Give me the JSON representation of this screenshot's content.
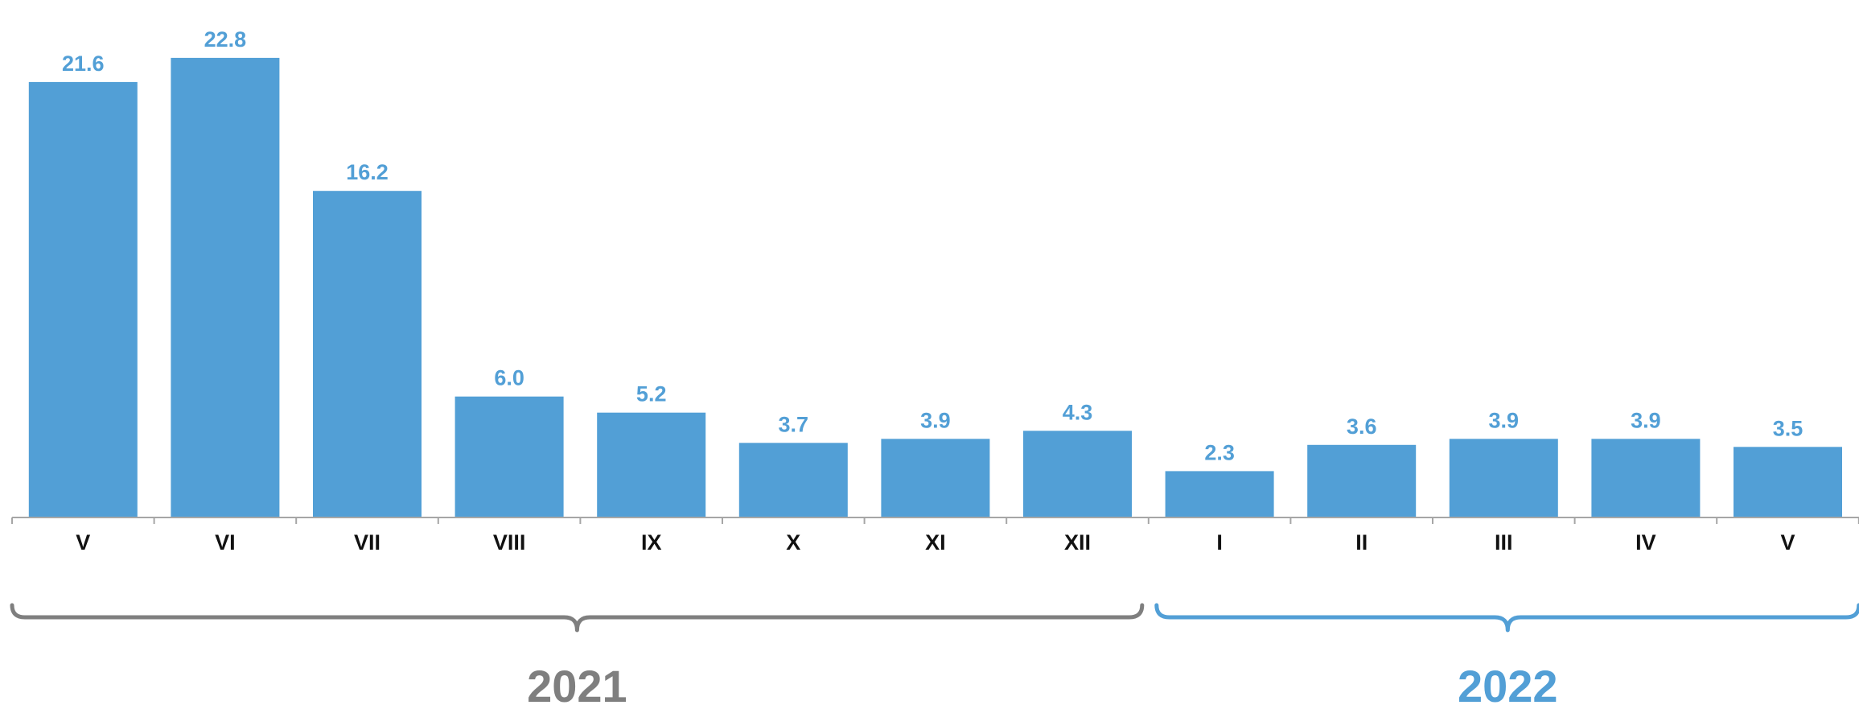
{
  "chart_data": {
    "type": "bar",
    "categories": [
      "V",
      "VI",
      "VII",
      "VIII",
      "IX",
      "X",
      "XI",
      "XII",
      "I",
      "II",
      "III",
      "IV",
      "V"
    ],
    "values": [
      21.6,
      22.8,
      16.2,
      6.0,
      5.2,
      3.7,
      3.9,
      4.3,
      2.3,
      3.6,
      3.9,
      3.9,
      3.5
    ],
    "value_labels": [
      "21.6",
      "22.8",
      "16.2",
      "6.0",
      "5.2",
      "3.7",
      "3.9",
      "4.3",
      "2.3",
      "3.6",
      "3.9",
      "3.9",
      "3.5"
    ],
    "title": "",
    "xlabel": "",
    "ylabel": "",
    "ylim": [
      0,
      25
    ],
    "grid": false,
    "legend": "none",
    "groups": [
      {
        "label": "2021",
        "start": 0,
        "end": 7,
        "color": "#7f7f7f"
      },
      {
        "label": "2022",
        "start": 8,
        "end": 12,
        "color": "#529fd6"
      }
    ],
    "colors": {
      "bar": "#529fd6",
      "value_label": "#529fd6",
      "axis": "#a6a6a6",
      "tick_label": "#111111"
    }
  }
}
